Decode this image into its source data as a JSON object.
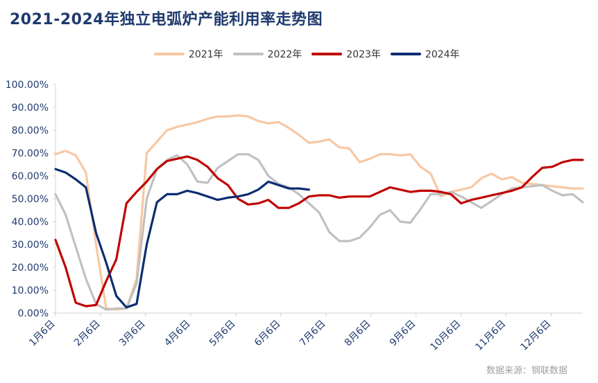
{
  "chart_data": {
    "type": "line",
    "title": "2021-2024年独立电弧炉产能利用率走势图",
    "xlabel": "",
    "ylabel": "",
    "ylim": [
      0,
      100
    ],
    "yticks": [
      "0.00%",
      "10.00%",
      "20.00%",
      "30.00%",
      "40.00%",
      "50.00%",
      "60.00%",
      "70.00%",
      "80.00%",
      "90.00%",
      "100.00%"
    ],
    "xticks": [
      "1月6日",
      "2月6日",
      "3月6日",
      "4月6日",
      "5月6日",
      "6月6日",
      "7月6日",
      "8月6日",
      "9月6日",
      "10月6日",
      "11月6日",
      "12月6日"
    ],
    "legend_position": "top",
    "grid": false,
    "colors": {
      "axis": "#d0d0d0",
      "tick_label": "#1f3a6e",
      "title": "#1f3a6e"
    },
    "series": [
      {
        "name": "2021年",
        "color": "#f7c7a3",
        "values": [
          69.5,
          71,
          69,
          61.5,
          30,
          2,
          1.5,
          2,
          15,
          70,
          75,
          80,
          81.5,
          82.5,
          83.5,
          85,
          86,
          86,
          86.5,
          86,
          84,
          83,
          83.5,
          81,
          78,
          74.5,
          75,
          76,
          72.5,
          72,
          66,
          67.5,
          69.5,
          69.5,
          69,
          69.5,
          64,
          61,
          51,
          53,
          54,
          55,
          59,
          61,
          58.5,
          59.5,
          57,
          56.5,
          56,
          55.5,
          55,
          54.5,
          54.5
        ]
      },
      {
        "name": "2022年",
        "color": "#c0c0c0",
        "values": [
          52,
          43,
          29,
          15,
          4,
          1.5,
          2,
          2,
          13,
          50,
          63,
          67,
          69,
          65,
          57.5,
          57,
          63.5,
          66.5,
          69.5,
          69.5,
          67,
          60,
          56.5,
          55,
          52,
          48,
          44,
          35.5,
          31.5,
          31.5,
          33,
          37.5,
          43,
          45,
          40,
          39.5,
          45.5,
          52,
          52,
          53,
          51,
          48.5,
          46,
          49,
          52,
          54.5,
          55,
          55.5,
          56,
          53.5,
          51.5,
          52,
          48.5
        ]
      },
      {
        "name": "2023年",
        "color": "#c00000",
        "values": [
          32,
          20,
          4.5,
          3,
          3.5,
          14,
          23.5,
          48,
          53,
          57.5,
          63,
          66.5,
          67.5,
          68.5,
          67,
          64,
          59,
          56,
          50,
          47.5,
          48,
          49.5,
          46,
          46,
          48,
          51,
          51.5,
          51.5,
          50.5,
          51,
          51,
          51,
          53,
          55,
          54,
          53,
          53.5,
          53.5,
          53,
          52,
          48,
          49.5,
          50.5,
          51.5,
          52.5,
          53.5,
          55,
          59.5,
          63.5,
          64,
          66,
          67,
          67
        ]
      },
      {
        "name": "2024年",
        "color": "#0b2d72",
        "values": [
          63,
          61.5,
          58.5,
          55,
          35,
          22,
          7.5,
          2.5,
          4,
          30,
          48.5,
          52,
          52,
          53.5,
          52.5,
          51,
          49.5,
          50.5,
          51,
          52,
          54,
          57.5,
          56,
          54.5,
          54.5,
          54
        ]
      }
    ]
  },
  "source": "数据来源：钢联数据"
}
